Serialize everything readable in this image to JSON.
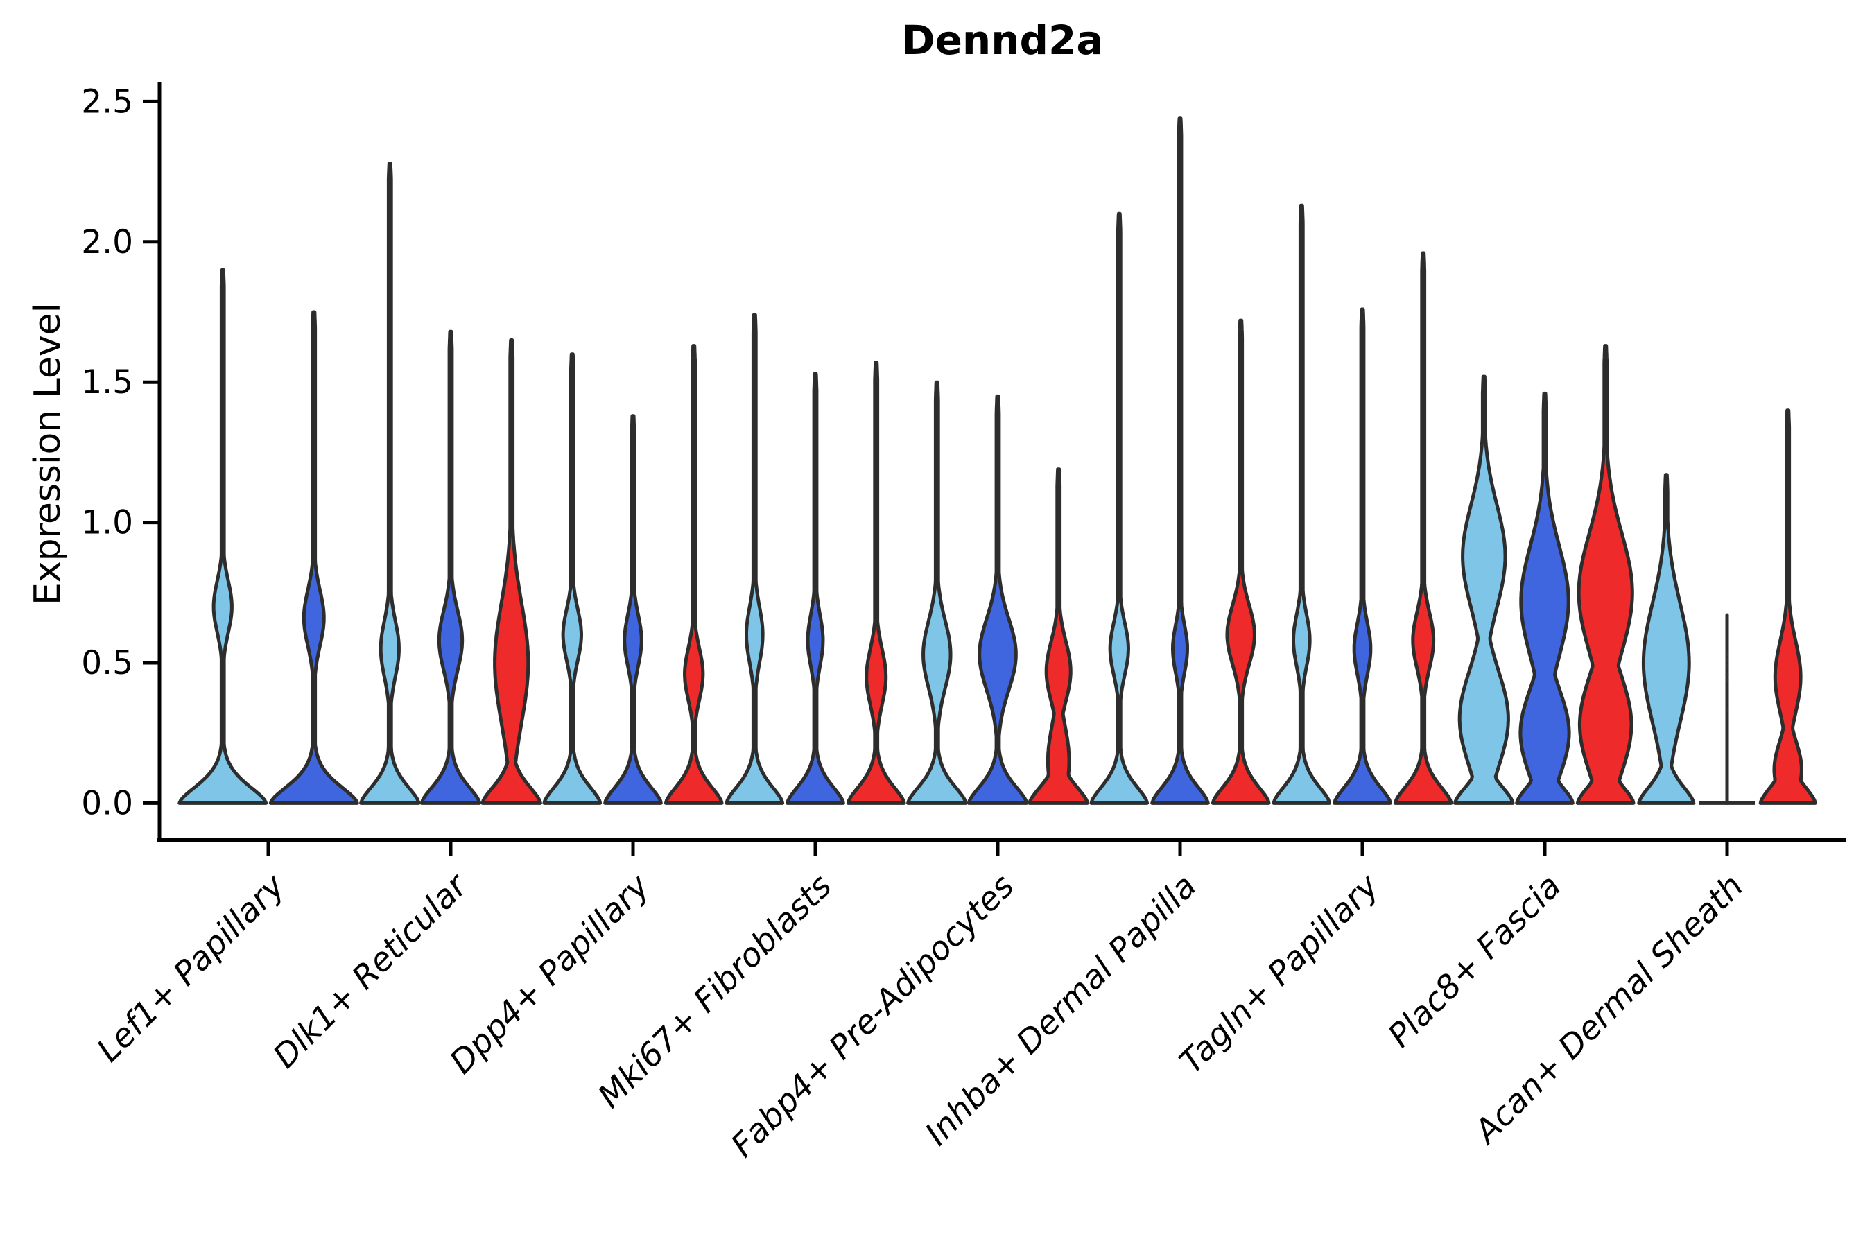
{
  "title": "Dennd2a",
  "chart_data": {
    "type": "violin",
    "title": "Dennd2a",
    "ylabel": "Expression Level",
    "yticks": [
      0.0,
      0.5,
      1.0,
      1.5,
      2.0,
      2.5
    ],
    "ylim": [
      -0.13,
      2.57
    ],
    "grid": false,
    "legend": null,
    "series_colors": {
      "light_blue": "#7FC5E8",
      "royal_blue": "#3F66DF",
      "red": "#EE2A2A"
    },
    "edge_color": "#2D2D2D",
    "axis_color": "#000000",
    "categories": [
      "Lef1+ Papillary",
      "Dlk1+ Reticular",
      "Dpp4+ Papillary",
      "Mki67+ Fibroblasts",
      "Fabp4+ Pre-Adipocytes",
      "Inhba+ Dermal Papilla",
      "Tagln+ Papillary",
      "Plac8+ Fascia",
      "Acan+ Dermal Sheath"
    ],
    "groups": [
      {
        "category": "Lef1+ Papillary",
        "violins": [
          {
            "color": "light_blue",
            "max": 1.9,
            "base": 0.95,
            "bulges": [
              [
                0.7,
                0.13,
                0.2
              ]
            ]
          },
          {
            "color": "royal_blue",
            "max": 1.75,
            "base": 0.95,
            "bulges": [
              [
                0.66,
                0.14,
                0.22
              ]
            ]
          }
        ]
      },
      {
        "category": "Dlk1+ Reticular",
        "violins": [
          {
            "color": "light_blue",
            "max": 2.28,
            "base": 0.95,
            "bulges": [
              [
                0.55,
                0.14,
                0.3
              ]
            ]
          },
          {
            "color": "royal_blue",
            "max": 1.68,
            "base": 0.95,
            "bulges": [
              [
                0.58,
                0.15,
                0.38
              ]
            ]
          },
          {
            "color": "red",
            "max": 1.65,
            "base": 0.95,
            "bulges": [
              [
                0.5,
                0.3,
                0.55
              ]
            ]
          }
        ]
      },
      {
        "category": "Dpp4+ Papillary",
        "violins": [
          {
            "color": "light_blue",
            "max": 1.6,
            "base": 0.92,
            "bulges": [
              [
                0.6,
                0.13,
                0.3
              ]
            ]
          },
          {
            "color": "royal_blue",
            "max": 1.38,
            "base": 0.92,
            "bulges": [
              [
                0.58,
                0.13,
                0.28
              ]
            ]
          },
          {
            "color": "red",
            "max": 1.63,
            "base": 0.92,
            "bulges": [
              [
                0.46,
                0.13,
                0.3
              ]
            ]
          }
        ]
      },
      {
        "category": "Mki67+ Fibroblasts",
        "violins": [
          {
            "color": "light_blue",
            "max": 1.74,
            "base": 0.92,
            "bulges": [
              [
                0.6,
                0.14,
                0.27
              ]
            ]
          },
          {
            "color": "royal_blue",
            "max": 1.53,
            "base": 0.92,
            "bulges": [
              [
                0.58,
                0.13,
                0.25
              ]
            ]
          },
          {
            "color": "red",
            "max": 1.57,
            "base": 0.92,
            "bulges": [
              [
                0.45,
                0.14,
                0.32
              ]
            ]
          }
        ]
      },
      {
        "category": "Fabp4+ Pre-Adipocytes",
        "violins": [
          {
            "color": "light_blue",
            "max": 1.5,
            "base": 0.95,
            "bulges": [
              [
                0.53,
                0.17,
                0.45
              ]
            ]
          },
          {
            "color": "royal_blue",
            "max": 1.45,
            "base": 0.95,
            "bulges": [
              [
                0.53,
                0.18,
                0.6
              ]
            ]
          },
          {
            "color": "red",
            "max": 1.19,
            "base": 0.95,
            "bulges": [
              [
                0.47,
                0.15,
                0.4
              ],
              [
                0.15,
                0.18,
                0.35
              ]
            ]
          }
        ]
      },
      {
        "category": "Inhba+ Dermal Papilla",
        "violins": [
          {
            "color": "light_blue",
            "max": 2.1,
            "base": 0.92,
            "bulges": [
              [
                0.55,
                0.13,
                0.3
              ]
            ]
          },
          {
            "color": "royal_blue",
            "max": 2.44,
            "base": 0.92,
            "bulges": [
              [
                0.55,
                0.12,
                0.24
              ]
            ]
          },
          {
            "color": "red",
            "max": 1.72,
            "base": 0.92,
            "bulges": [
              [
                0.6,
                0.15,
                0.45
              ]
            ]
          }
        ]
      },
      {
        "category": "Tagln+ Papillary",
        "violins": [
          {
            "color": "light_blue",
            "max": 2.13,
            "base": 0.92,
            "bulges": [
              [
                0.58,
                0.13,
                0.27
              ]
            ]
          },
          {
            "color": "royal_blue",
            "max": 1.76,
            "base": 0.92,
            "bulges": [
              [
                0.55,
                0.13,
                0.27
              ]
            ]
          },
          {
            "color": "red",
            "max": 1.96,
            "base": 0.92,
            "bulges": [
              [
                0.58,
                0.14,
                0.34
              ]
            ]
          }
        ]
      },
      {
        "category": "Plac8+ Fascia",
        "violins": [
          {
            "color": "light_blue",
            "max": 1.52,
            "base": 0.95,
            "bulges": [
              [
                0.88,
                0.26,
                0.7
              ],
              [
                0.3,
                0.24,
                0.8
              ]
            ]
          },
          {
            "color": "royal_blue",
            "max": 1.46,
            "base": 0.92,
            "bulges": [
              [
                0.72,
                0.28,
                0.78
              ],
              [
                0.25,
                0.22,
                0.8
              ]
            ]
          },
          {
            "color": "red",
            "max": 1.63,
            "base": 0.92,
            "bulges": [
              [
                0.75,
                0.3,
                0.88
              ],
              [
                0.28,
                0.25,
                0.85
              ]
            ]
          }
        ]
      },
      {
        "category": "Acan+ Dermal Sheath",
        "violins": [
          {
            "color": "light_blue",
            "max": 1.17,
            "base": 0.9,
            "bulges": [
              [
                0.5,
                0.3,
                0.75
              ]
            ]
          },
          {
            "color": "royal_blue",
            "max": 0.67,
            "degenerate": true,
            "points": [
              0.33,
              0.44,
              0.46,
              0.49,
              0.51,
              0.53
            ]
          },
          {
            "color": "red",
            "max": 1.4,
            "base": 0.9,
            "bulges": [
              [
                0.45,
                0.18,
                0.42
              ],
              [
                0.12,
                0.14,
                0.45
              ]
            ]
          }
        ]
      }
    ]
  }
}
